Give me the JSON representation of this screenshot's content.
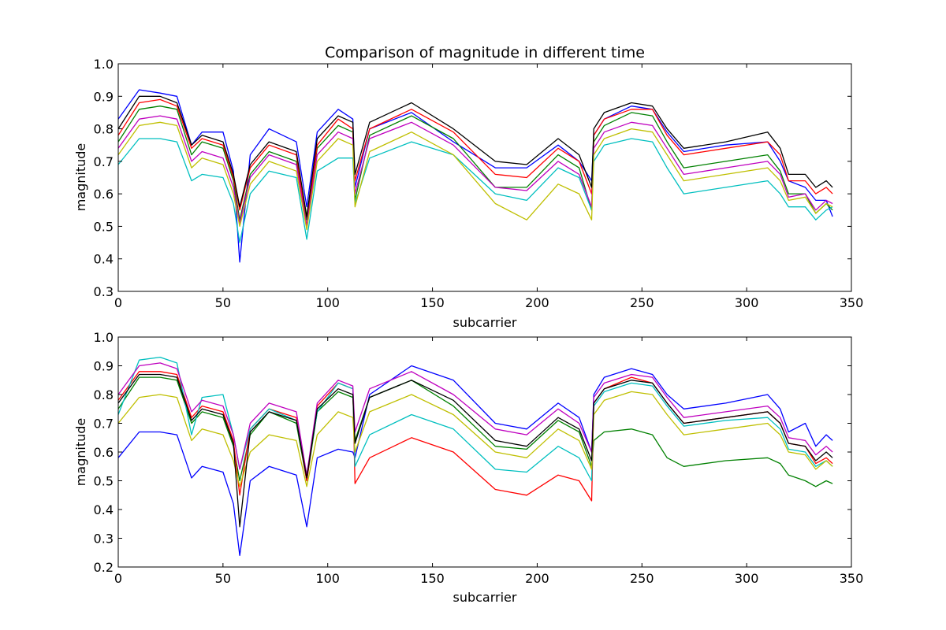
{
  "figure": {
    "background": "#ffffff"
  },
  "chart_data": [
    {
      "type": "line",
      "title": "Comparison of magnitude in different time",
      "xlabel": "subcarrier",
      "ylabel": "magnitude",
      "xlim": [
        0,
        350
      ],
      "ylim": [
        0.3,
        1.0
      ],
      "xticks": [
        "0",
        "50",
        "100",
        "150",
        "200",
        "250",
        "300",
        "350"
      ],
      "yticks": [
        "0.3",
        "0.4",
        "0.5",
        "0.6",
        "0.7",
        "0.8",
        "0.9",
        "1.0"
      ],
      "grid": false,
      "legend": "none",
      "line_colors": [
        "#0000ff",
        "#008000",
        "#ff0000",
        "#00bfbf",
        "#bf00bf",
        "#bfbf00",
        "#000000"
      ],
      "x": [
        0,
        10,
        20,
        28,
        35,
        40,
        50,
        55,
        58,
        63,
        72,
        85,
        90,
        95,
        105,
        112,
        113,
        120,
        140,
        160,
        180,
        195,
        210,
        220,
        226,
        227,
        232,
        245,
        255,
        262,
        270,
        290,
        310,
        316,
        320,
        328,
        333,
        338,
        341
      ],
      "series": [
        {
          "values": [
            0.83,
            0.92,
            0.91,
            0.9,
            0.75,
            0.79,
            0.79,
            0.67,
            0.39,
            0.72,
            0.8,
            0.76,
            0.56,
            0.79,
            0.86,
            0.83,
            0.62,
            0.8,
            0.85,
            0.76,
            0.68,
            0.68,
            0.75,
            0.7,
            0.64,
            0.78,
            0.83,
            0.87,
            0.86,
            0.79,
            0.73,
            0.75,
            0.76,
            0.7,
            0.64,
            0.62,
            0.58,
            0.58,
            0.53
          ]
        },
        {
          "values": [
            0.76,
            0.86,
            0.87,
            0.86,
            0.72,
            0.76,
            0.74,
            0.64,
            0.52,
            0.66,
            0.73,
            0.7,
            0.52,
            0.74,
            0.81,
            0.79,
            0.58,
            0.78,
            0.84,
            0.77,
            0.62,
            0.62,
            0.72,
            0.68,
            0.55,
            0.76,
            0.81,
            0.85,
            0.84,
            0.76,
            0.68,
            0.7,
            0.72,
            0.67,
            0.6,
            0.6,
            0.54,
            0.57,
            0.55
          ]
        },
        {
          "values": [
            0.78,
            0.88,
            0.89,
            0.87,
            0.74,
            0.77,
            0.75,
            0.65,
            0.55,
            0.68,
            0.75,
            0.72,
            0.5,
            0.75,
            0.83,
            0.8,
            0.64,
            0.8,
            0.86,
            0.79,
            0.66,
            0.65,
            0.74,
            0.7,
            0.6,
            0.78,
            0.83,
            0.86,
            0.86,
            0.78,
            0.72,
            0.74,
            0.76,
            0.72,
            0.64,
            0.64,
            0.6,
            0.62,
            0.6
          ]
        },
        {
          "values": [
            0.69,
            0.77,
            0.77,
            0.76,
            0.64,
            0.66,
            0.65,
            0.57,
            0.45,
            0.6,
            0.67,
            0.65,
            0.46,
            0.67,
            0.71,
            0.71,
            0.57,
            0.71,
            0.76,
            0.72,
            0.6,
            0.58,
            0.68,
            0.65,
            0.55,
            0.7,
            0.75,
            0.77,
            0.76,
            0.68,
            0.6,
            0.62,
            0.64,
            0.6,
            0.56,
            0.56,
            0.52,
            0.55,
            0.56
          ]
        },
        {
          "values": [
            0.74,
            0.83,
            0.84,
            0.83,
            0.7,
            0.73,
            0.71,
            0.62,
            0.51,
            0.65,
            0.72,
            0.69,
            0.5,
            0.72,
            0.79,
            0.77,
            0.6,
            0.77,
            0.82,
            0.75,
            0.62,
            0.61,
            0.7,
            0.66,
            0.56,
            0.74,
            0.79,
            0.82,
            0.81,
            0.74,
            0.66,
            0.68,
            0.7,
            0.66,
            0.59,
            0.6,
            0.55,
            0.58,
            0.57
          ]
        },
        {
          "values": [
            0.72,
            0.81,
            0.82,
            0.81,
            0.68,
            0.71,
            0.69,
            0.6,
            0.5,
            0.63,
            0.7,
            0.67,
            0.49,
            0.7,
            0.77,
            0.75,
            0.56,
            0.73,
            0.79,
            0.72,
            0.57,
            0.52,
            0.63,
            0.6,
            0.52,
            0.72,
            0.77,
            0.8,
            0.79,
            0.72,
            0.64,
            0.66,
            0.68,
            0.64,
            0.58,
            0.59,
            0.54,
            0.57,
            0.56
          ]
        },
        {
          "values": [
            0.8,
            0.9,
            0.9,
            0.88,
            0.75,
            0.78,
            0.76,
            0.66,
            0.56,
            0.69,
            0.76,
            0.73,
            0.53,
            0.77,
            0.84,
            0.82,
            0.66,
            0.82,
            0.88,
            0.8,
            0.7,
            0.69,
            0.77,
            0.72,
            0.62,
            0.8,
            0.85,
            0.88,
            0.87,
            0.8,
            0.74,
            0.76,
            0.79,
            0.74,
            0.66,
            0.66,
            0.62,
            0.64,
            0.62
          ]
        }
      ]
    },
    {
      "type": "line",
      "title": "",
      "xlabel": "subcarrier",
      "ylabel": "magnitude",
      "xlim": [
        0,
        350
      ],
      "ylim": [
        0.2,
        1.0
      ],
      "xticks": [
        "0",
        "50",
        "100",
        "150",
        "200",
        "250",
        "300",
        "350"
      ],
      "yticks": [
        "0.2",
        "0.3",
        "0.4",
        "0.5",
        "0.6",
        "0.7",
        "0.8",
        "0.9",
        "1.0"
      ],
      "grid": false,
      "legend": "none",
      "line_colors": [
        "#0000ff",
        "#008000",
        "#ff0000",
        "#00bfbf",
        "#bf00bf",
        "#bfbf00",
        "#000000"
      ],
      "x": [
        0,
        10,
        20,
        28,
        35,
        40,
        50,
        55,
        58,
        63,
        72,
        85,
        90,
        95,
        105,
        112,
        113,
        120,
        140,
        160,
        180,
        195,
        210,
        220,
        226,
        227,
        232,
        245,
        255,
        262,
        270,
        290,
        310,
        316,
        320,
        328,
        333,
        338,
        341
      ],
      "series": [
        {
          "values": [
            0.58,
            0.67,
            0.67,
            0.66,
            0.51,
            0.55,
            0.53,
            0.42,
            0.24,
            0.5,
            0.55,
            0.52,
            0.34,
            0.58,
            0.61,
            0.6,
            0.58,
            0.8,
            0.9,
            0.85,
            0.7,
            0.68,
            0.77,
            0.72,
            0.6,
            0.8,
            0.86,
            0.89,
            0.87,
            0.8,
            0.75,
            0.77,
            0.8,
            0.75,
            0.67,
            0.7,
            0.62,
            0.66,
            0.64
          ]
        },
        {
          "values": [
            0.75,
            0.86,
            0.86,
            0.85,
            0.7,
            0.74,
            0.72,
            0.62,
            0.5,
            0.66,
            0.74,
            0.7,
            0.5,
            0.74,
            0.81,
            0.79,
            0.64,
            0.79,
            0.85,
            0.76,
            0.62,
            0.61,
            0.71,
            0.67,
            0.55,
            0.64,
            0.67,
            0.68,
            0.66,
            0.58,
            0.55,
            0.57,
            0.58,
            0.56,
            0.52,
            0.5,
            0.48,
            0.5,
            0.49
          ]
        },
        {
          "values": [
            0.78,
            0.88,
            0.88,
            0.87,
            0.72,
            0.76,
            0.74,
            0.64,
            0.45,
            0.68,
            0.75,
            0.72,
            0.5,
            0.76,
            0.84,
            0.82,
            0.49,
            0.58,
            0.65,
            0.6,
            0.47,
            0.45,
            0.52,
            0.5,
            0.43,
            0.77,
            0.82,
            0.86,
            0.84,
            0.77,
            0.7,
            0.72,
            0.74,
            0.7,
            0.63,
            0.62,
            0.56,
            0.58,
            0.56
          ]
        },
        {
          "values": [
            0.73,
            0.92,
            0.93,
            0.91,
            0.66,
            0.79,
            0.8,
            0.66,
            0.54,
            0.68,
            0.75,
            0.71,
            0.52,
            0.74,
            0.84,
            0.82,
            0.55,
            0.66,
            0.73,
            0.68,
            0.54,
            0.53,
            0.62,
            0.58,
            0.5,
            0.76,
            0.81,
            0.84,
            0.83,
            0.76,
            0.69,
            0.71,
            0.72,
            0.68,
            0.61,
            0.6,
            0.55,
            0.57,
            0.55
          ]
        },
        {
          "values": [
            0.8,
            0.9,
            0.91,
            0.89,
            0.74,
            0.78,
            0.76,
            0.66,
            0.54,
            0.7,
            0.77,
            0.74,
            0.52,
            0.77,
            0.85,
            0.83,
            0.67,
            0.82,
            0.88,
            0.8,
            0.68,
            0.66,
            0.75,
            0.7,
            0.6,
            0.79,
            0.84,
            0.87,
            0.86,
            0.79,
            0.72,
            0.74,
            0.76,
            0.72,
            0.65,
            0.64,
            0.59,
            0.62,
            0.6
          ]
        },
        {
          "values": [
            0.7,
            0.79,
            0.8,
            0.79,
            0.64,
            0.68,
            0.66,
            0.57,
            0.48,
            0.6,
            0.66,
            0.64,
            0.48,
            0.66,
            0.74,
            0.72,
            0.6,
            0.74,
            0.8,
            0.73,
            0.6,
            0.58,
            0.68,
            0.64,
            0.54,
            0.73,
            0.78,
            0.81,
            0.8,
            0.73,
            0.66,
            0.68,
            0.7,
            0.66,
            0.6,
            0.59,
            0.54,
            0.57,
            0.55
          ]
        },
        {
          "values": [
            0.77,
            0.87,
            0.87,
            0.86,
            0.71,
            0.75,
            0.73,
            0.63,
            0.34,
            0.67,
            0.74,
            0.71,
            0.51,
            0.75,
            0.82,
            0.8,
            0.63,
            0.79,
            0.85,
            0.78,
            0.64,
            0.62,
            0.72,
            0.68,
            0.57,
            0.77,
            0.82,
            0.85,
            0.84,
            0.77,
            0.7,
            0.72,
            0.74,
            0.7,
            0.63,
            0.62,
            0.57,
            0.6,
            0.58
          ]
        }
      ]
    }
  ]
}
